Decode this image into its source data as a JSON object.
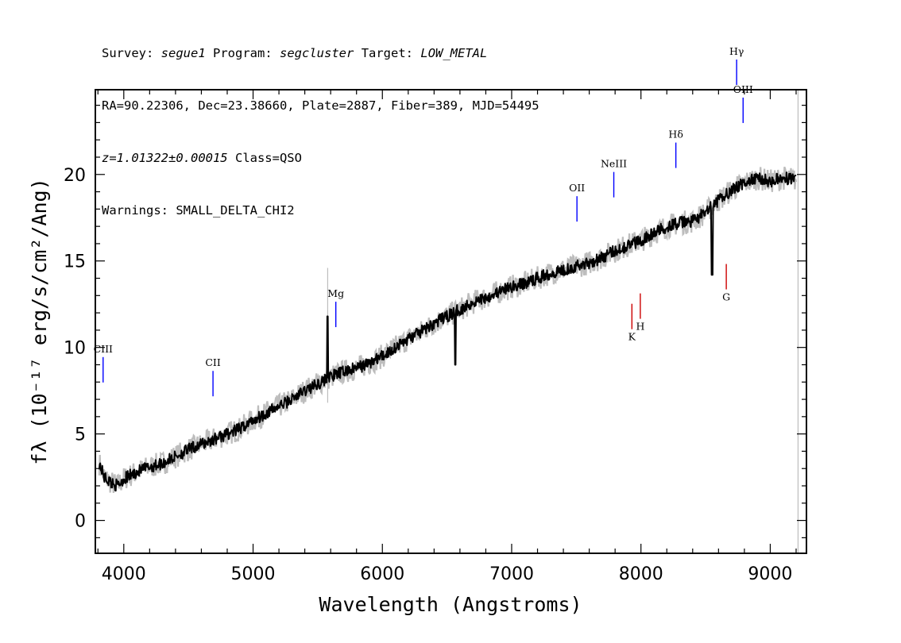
{
  "header": {
    "survey_label": "Survey:",
    "survey": "segue1",
    "program_label": "Program:",
    "program": "segcluster",
    "target_label": "Target:",
    "target": "LOW_METAL",
    "line2": "RA=90.22306, Dec=23.38660, Plate=2887, Fiber=389, MJD=54495",
    "redshift": "z=1.01322±0.00015",
    "class_text": "Class=QSO",
    "warnings": "Warnings: SMALL_DELTA_CHI2"
  },
  "chart_data": {
    "type": "line",
    "xlabel": "Wavelength (Angstroms)",
    "ylabel": "fλ (10⁻¹⁷ erg/s/cm²/Ang)",
    "xlim": [
      3780,
      9280
    ],
    "ylim": [
      -1.9,
      24.9
    ],
    "x_ticks": [
      4000,
      5000,
      6000,
      7000,
      8000,
      9000
    ],
    "y_ticks": [
      0,
      5,
      10,
      15,
      20
    ],
    "grid": false,
    "colors": {
      "flux": "#000000",
      "error": "#bdbdbd",
      "emission": "#0000ff",
      "absorption": "#cc0000",
      "sky": "#000080"
    },
    "series": [
      {
        "role": "flux",
        "x": [
          3810,
          3850,
          3900,
          3950,
          4000,
          4100,
          4200,
          4300,
          4400,
          4500,
          4600,
          4700,
          4800,
          4900,
          5000,
          5100,
          5200,
          5300,
          5400,
          5500,
          5600,
          5700,
          5800,
          5900,
          6000,
          6100,
          6200,
          6300,
          6400,
          6500,
          6600,
          6700,
          6800,
          6900,
          7000,
          7100,
          7200,
          7300,
          7400,
          7500,
          7600,
          7700,
          7800,
          7900,
          8000,
          8100,
          8200,
          8300,
          8400,
          8500,
          8600,
          8700,
          8800,
          8900,
          9000,
          9100,
          9200
        ],
        "y": [
          3.3,
          2.5,
          2.2,
          2.0,
          2.4,
          2.8,
          3.1,
          3.3,
          3.7,
          4.1,
          4.4,
          4.7,
          5.0,
          5.3,
          5.8,
          6.2,
          6.6,
          7.0,
          7.5,
          7.9,
          8.3,
          8.6,
          8.8,
          9.1,
          9.5,
          10.0,
          10.5,
          10.9,
          11.4,
          11.8,
          12.2,
          12.6,
          12.9,
          13.2,
          13.5,
          13.7,
          14.0,
          14.3,
          14.5,
          14.7,
          14.9,
          15.2,
          15.6,
          15.9,
          16.2,
          16.6,
          17.0,
          17.2,
          17.3,
          17.8,
          18.5,
          19.1,
          19.5,
          19.8,
          19.6,
          19.8,
          19.7
        ]
      }
    ],
    "line_markers": [
      {
        "label": "CIII",
        "wavelength": 3840,
        "kind": "emission",
        "flux": 7.7
      },
      {
        "label": "CII",
        "wavelength": 4690,
        "kind": "emission",
        "flux": 6.9
      },
      {
        "label": "Mg",
        "wavelength": 5640,
        "kind": "emission",
        "flux": 10.9
      },
      {
        "label": "OII",
        "wavelength": 7505,
        "kind": "emission",
        "flux": 17.0
      },
      {
        "label": "NeIII",
        "wavelength": 7790,
        "kind": "emission",
        "flux": 18.4
      },
      {
        "label": "Hδ",
        "wavelength": 8270,
        "kind": "emission",
        "flux": 20.1
      },
      {
        "label": "Hγ",
        "wavelength": 8740,
        "kind": "emission",
        "flux": 24.9
      },
      {
        "label": "OIII",
        "wavelength": 8790,
        "kind": "emission",
        "flux": 22.7
      },
      {
        "label": "K",
        "wavelength": 7930,
        "kind": "absorption",
        "flux": 12.8
      },
      {
        "label": "H",
        "wavelength": 7995,
        "kind": "absorption",
        "flux": 13.4
      },
      {
        "label": "G",
        "wavelength": 8660,
        "kind": "absorption",
        "flux": 15.1
      }
    ],
    "sky_line_wavelength": 5577
  }
}
